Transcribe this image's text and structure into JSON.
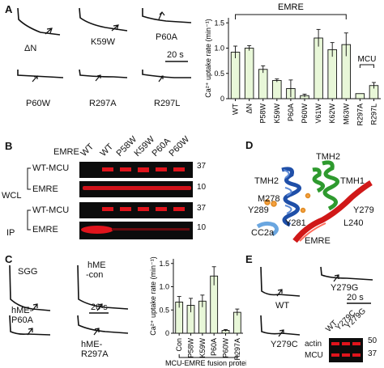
{
  "panel_labels": {
    "a": "A",
    "b": "B",
    "c": "C",
    "d": "D",
    "e": "E"
  },
  "panelA": {
    "traces": [
      "ΔN",
      "K59W",
      "P60A",
      "P60W",
      "R297A",
      "R297L"
    ],
    "scale": "20 s"
  },
  "panelB": {
    "header_label": "EMRE",
    "lanes": [
      "WT",
      "WT",
      "P58W",
      "K59W",
      "P60A",
      "P60W"
    ],
    "group_wcl": "WCL",
    "group_ip": "IP",
    "rows": [
      "WT-MCU",
      "EMRE",
      "WT-MCU",
      "EMRE"
    ],
    "mw": [
      "37",
      "10",
      "37",
      "10"
    ]
  },
  "panelC": {
    "traces": [
      "SGG",
      "hME-con",
      "hME-P60A",
      "hME-R297A"
    ],
    "trace_line1": [
      "SGG",
      "hME",
      "hME-",
      "hME-"
    ],
    "trace_line2": [
      "",
      "-con",
      "P60A",
      "R297A"
    ],
    "scale": "20 s"
  },
  "panelD": {
    "labels": [
      "TMH2",
      "TMH2",
      "TMH1",
      "M278",
      "Y289",
      "Y279",
      "Y281",
      "L240",
      "CC2a",
      "EMRE"
    ]
  },
  "panelE": {
    "traces": [
      "WT",
      "Y279G",
      "Y279C"
    ],
    "scale": "20 s",
    "lanes": [
      "WT",
      "Y279C",
      "Y279G"
    ],
    "rows": [
      "actin",
      "MCU"
    ],
    "mw": [
      "50",
      "37"
    ]
  },
  "chart_data": [
    {
      "type": "bar",
      "title": "",
      "ylabel": "Ca²⁺ uptake rate (min⁻¹)",
      "ylim": [
        0,
        1.6
      ],
      "yticks": [
        "0",
        "0.5",
        "1.0",
        "1.5"
      ],
      "categories": [
        "WT",
        "ΔN",
        "P58W",
        "K59W",
        "P60A",
        "P60W",
        "V61W",
        "K62W",
        "M63W",
        "R297A",
        "R297L"
      ],
      "values": [
        0.92,
        1.0,
        0.58,
        0.36,
        0.2,
        0.06,
        1.2,
        0.97,
        1.07,
        0.1,
        0.26
      ],
      "errors": [
        0.12,
        0.05,
        0.07,
        0.03,
        0.17,
        0.03,
        0.17,
        0.14,
        0.23,
        0.0,
        0.06
      ],
      "bracket_emre": "EMRE",
      "bracket_mcu": "MCU"
    },
    {
      "type": "bar",
      "title": "",
      "ylabel": "Ca²⁺ uptake rate (min⁻¹)",
      "ylim": [
        0,
        1.6
      ],
      "yticks": [
        "0",
        "0.5",
        "1.0",
        "1.5"
      ],
      "categories": [
        "Con",
        "P58W",
        "K59W",
        "P60A",
        "P60W",
        "R297A"
      ],
      "values": [
        0.67,
        0.6,
        0.69,
        1.23,
        0.06,
        0.45
      ],
      "errors": [
        0.12,
        0.15,
        0.13,
        0.2,
        0.02,
        0.07
      ],
      "xlabel": "MCU-EMRE fusion protein"
    }
  ]
}
